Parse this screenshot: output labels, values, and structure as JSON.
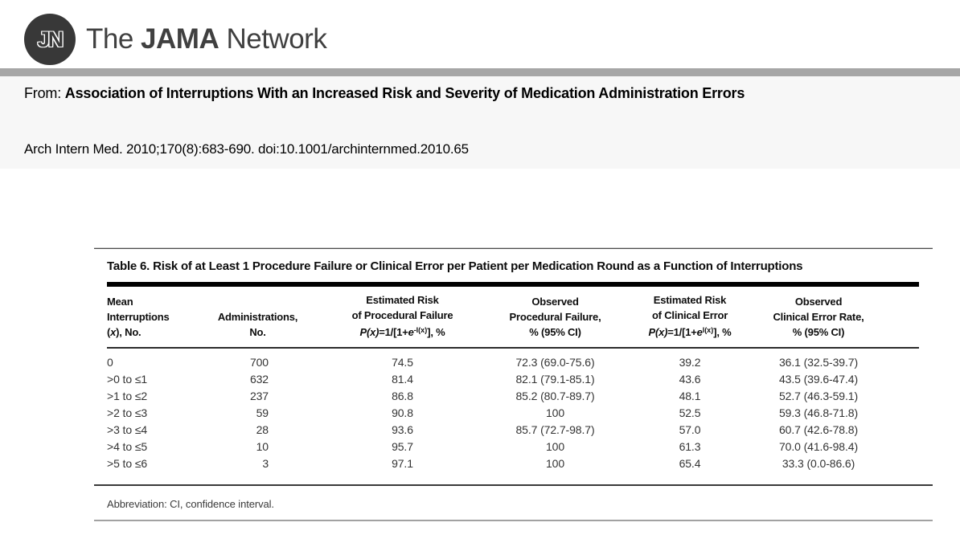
{
  "logo": {
    "monogram": "JN",
    "brand_the": "The ",
    "brand_jama": "JAMA",
    "brand_network": " Network"
  },
  "source": {
    "prefix": "From: ",
    "article_title": "Association of Interruptions With an Increased Risk and Severity of Medication Administration Errors",
    "citation": "Arch Intern Med. 2010;170(8):683-690. doi:10.1001/archinternmed.2010.65"
  },
  "table": {
    "title": "Table 6. Risk of at Least 1 Procedure Failure or Clinical Error per Patient per Medication Round as a Function of Interruptions",
    "header": {
      "col1": {
        "l1": "Mean",
        "l2": "Interruptions",
        "l3_pre": "(",
        "l3_x": "x",
        "l3_post": "), No."
      },
      "col2": {
        "l1": "Administrations,",
        "l2": "No."
      },
      "col3": {
        "l1": "Estimated Risk",
        "l2": "of Procedural Failure",
        "f_px": "P(x)",
        "f_mid": "=1/[1+",
        "f_e": "e",
        "f_sup": "-l(x)",
        "f_end": "], %"
      },
      "col4": {
        "l1": "Observed",
        "l2": "Procedural Failure,",
        "l3": "% (95% CI)"
      },
      "col5": {
        "l1": "Estimated Risk",
        "l2": "of Clinical Error",
        "f_px": "P(x)",
        "f_mid": "=1/[1+",
        "f_e": "e",
        "f_sup": "l(x)",
        "f_end": "], %"
      },
      "col6": {
        "l1": "Observed",
        "l2": "Clinical Error Rate,",
        "l3": "% (95% CI)"
      }
    },
    "rows": [
      [
        "0",
        "700",
        "74.5",
        "72.3 (69.0-75.6)",
        "39.2",
        "36.1 (32.5-39.7)"
      ],
      [
        ">0 to ≤1",
        "632",
        "81.4",
        "82.1 (79.1-85.1)",
        "43.6",
        "43.5 (39.6-47.4)"
      ],
      [
        ">1 to ≤2",
        "237",
        "86.8",
        "85.2 (80.7-89.7)",
        "48.1",
        "52.7 (46.3-59.1)"
      ],
      [
        ">2 to ≤3",
        "59",
        "90.8",
        "100",
        "52.5",
        "59.3 (46.8-71.8)"
      ],
      [
        ">3 to ≤4",
        "28",
        "93.6",
        "85.7 (72.7-98.7)",
        "57.0",
        "60.7 (42.6-78.8)"
      ],
      [
        ">4 to ≤5",
        "10",
        "95.7",
        "100",
        "61.3",
        "70.0 (41.6-98.4)"
      ],
      [
        ">5 to ≤6",
        "3",
        "97.1",
        "100",
        "65.4",
        "33.3 (0.0-86.6)"
      ]
    ],
    "footnote": "Abbreviation: CI, confidence interval."
  },
  "colors": {
    "logo_circle": "#383838",
    "divider_gray": "#a6a6a6",
    "band_background": "#f7f7f7",
    "thick_rule": "#000000",
    "dark_rule": "#3a3a3a",
    "light_rule": "#a2a2a2"
  }
}
